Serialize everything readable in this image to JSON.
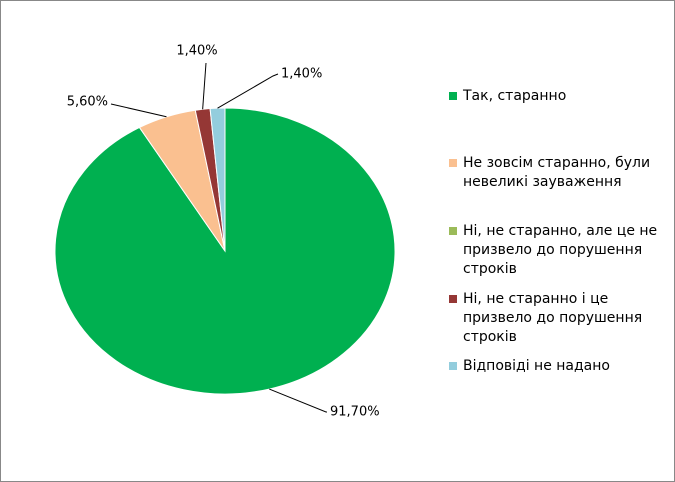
{
  "chart_data": {
    "type": "pie",
    "categories": [
      "Так, старанно",
      "Не зовсім старанно, були невеликі зауваження",
      "Ні, не старанно, але це не призвело до порушення строків",
      "Ні, не старанно і це призвело до порушення строків",
      "Відповіді не надано"
    ],
    "values": [
      91.7,
      5.6,
      0,
      1.4,
      1.4
    ],
    "value_labels": [
      "91,70%",
      "5,60%",
      null,
      "1,40%",
      "1,40%"
    ],
    "colors": [
      "#00b050",
      "#fac090",
      "#9bbb59",
      "#953735",
      "#93cddd"
    ],
    "legend": "right"
  }
}
